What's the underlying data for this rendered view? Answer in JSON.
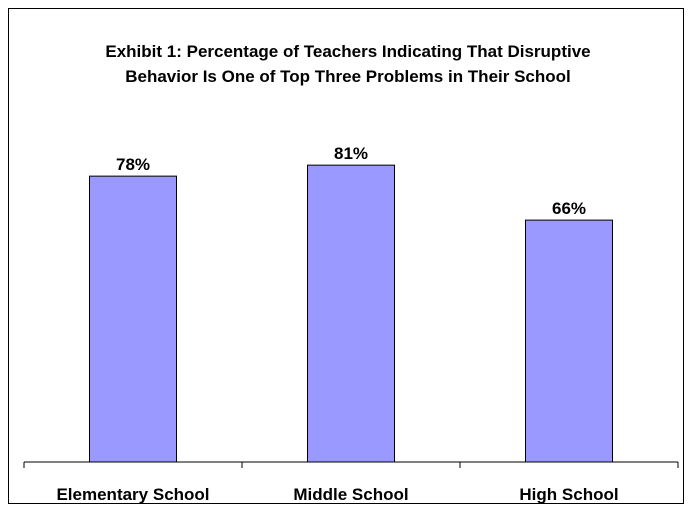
{
  "chart_data": {
    "type": "bar",
    "title_lines": [
      "Exhibit 1:  Percentage of Teachers Indicating That Disruptive",
      "Behavior Is One of Top Three Problems in Their School"
    ],
    "categories": [
      "Elementary School",
      "Middle School",
      "High School"
    ],
    "values": [
      78,
      81,
      66
    ],
    "data_labels": [
      "78%",
      "81%",
      "66%"
    ],
    "xlabel": "",
    "ylabel": "",
    "ylim": [
      0,
      100
    ],
    "grid": false,
    "legend": "none",
    "bar_color": "#9999ff",
    "bar_edge_color": "#000000"
  }
}
